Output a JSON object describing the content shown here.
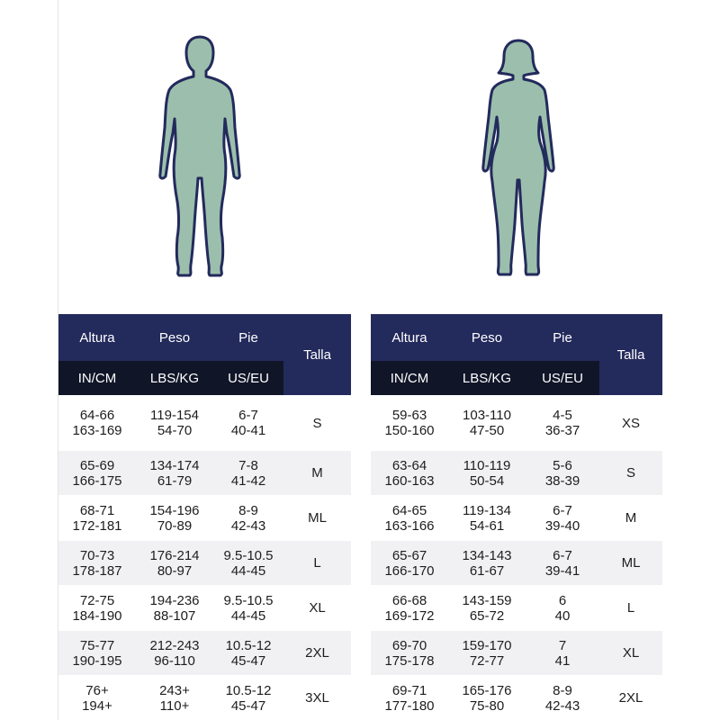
{
  "colors": {
    "header": "#232a5c",
    "unit_header": "#111528",
    "figure_fill": "#9bbfac",
    "figure_stroke": "#232a5c"
  },
  "figures": {
    "male": "male-silhouette-icon",
    "female": "female-silhouette-icon"
  },
  "male_table": {
    "headers": [
      "Altura",
      "Peso",
      "Pie",
      "Talla"
    ],
    "units": [
      "IN/CM",
      "LBS/KG",
      "US/EU"
    ],
    "rows": [
      {
        "height_in": "64-66",
        "height_cm": "163-169",
        "weight_lbs": "119-154",
        "weight_kg": "54-70",
        "foot_us": "6-7",
        "foot_eu": "40-41",
        "size": "S"
      },
      {
        "height_in": "65-69",
        "height_cm": "166-175",
        "weight_lbs": "134-174",
        "weight_kg": "61-79",
        "foot_us": "7-8",
        "foot_eu": "41-42",
        "size": "M"
      },
      {
        "height_in": "68-71",
        "height_cm": "172-181",
        "weight_lbs": "154-196",
        "weight_kg": "70-89",
        "foot_us": "8-9",
        "foot_eu": "42-43",
        "size": "ML"
      },
      {
        "height_in": "70-73",
        "height_cm": "178-187",
        "weight_lbs": "176-214",
        "weight_kg": "80-97",
        "foot_us": "9.5-10.5",
        "foot_eu": "44-45",
        "size": "L"
      },
      {
        "height_in": "72-75",
        "height_cm": "184-190",
        "weight_lbs": "194-236",
        "weight_kg": "88-107",
        "foot_us": "9.5-10.5",
        "foot_eu": "44-45",
        "size": "XL"
      },
      {
        "height_in": "75-77",
        "height_cm": "190-195",
        "weight_lbs": "212-243",
        "weight_kg": "96-110",
        "foot_us": "10.5-12",
        "foot_eu": "45-47",
        "size": "2XL"
      },
      {
        "height_in": "76+",
        "height_cm": "194+",
        "weight_lbs": "243+",
        "weight_kg": "110+",
        "foot_us": "10.5-12",
        "foot_eu": "45-47",
        "size": "3XL"
      }
    ]
  },
  "female_table": {
    "headers": [
      "Altura",
      "Peso",
      "Pie",
      "Talla"
    ],
    "units": [
      "IN/CM",
      "LBS/KG",
      "US/EU"
    ],
    "rows": [
      {
        "height_in": "59-63",
        "height_cm": "150-160",
        "weight_lbs": "103-110",
        "weight_kg": "47-50",
        "foot_us": "4-5",
        "foot_eu": "36-37",
        "size": "XS"
      },
      {
        "height_in": "63-64",
        "height_cm": "160-163",
        "weight_lbs": "110-119",
        "weight_kg": "50-54",
        "foot_us": "5-6",
        "foot_eu": "38-39",
        "size": "S"
      },
      {
        "height_in": "64-65",
        "height_cm": "163-166",
        "weight_lbs": "119-134",
        "weight_kg": "54-61",
        "foot_us": "6-7",
        "foot_eu": "39-40",
        "size": "M"
      },
      {
        "height_in": "65-67",
        "height_cm": "166-170",
        "weight_lbs": "134-143",
        "weight_kg": "61-67",
        "foot_us": "6-7",
        "foot_eu": "39-41",
        "size": "ML"
      },
      {
        "height_in": "66-68",
        "height_cm": "169-172",
        "weight_lbs": "143-159",
        "weight_kg": "65-72",
        "foot_us": "6",
        "foot_eu": "40",
        "size": "L"
      },
      {
        "height_in": "69-70",
        "height_cm": "175-178",
        "weight_lbs": "159-170",
        "weight_kg": "72-77",
        "foot_us": "7",
        "foot_eu": "41",
        "size": "XL"
      },
      {
        "height_in": "69-71",
        "height_cm": "177-180",
        "weight_lbs": "165-176",
        "weight_kg": "75-80",
        "foot_us": "8-9",
        "foot_eu": "42-43",
        "size": "2XL"
      }
    ]
  }
}
